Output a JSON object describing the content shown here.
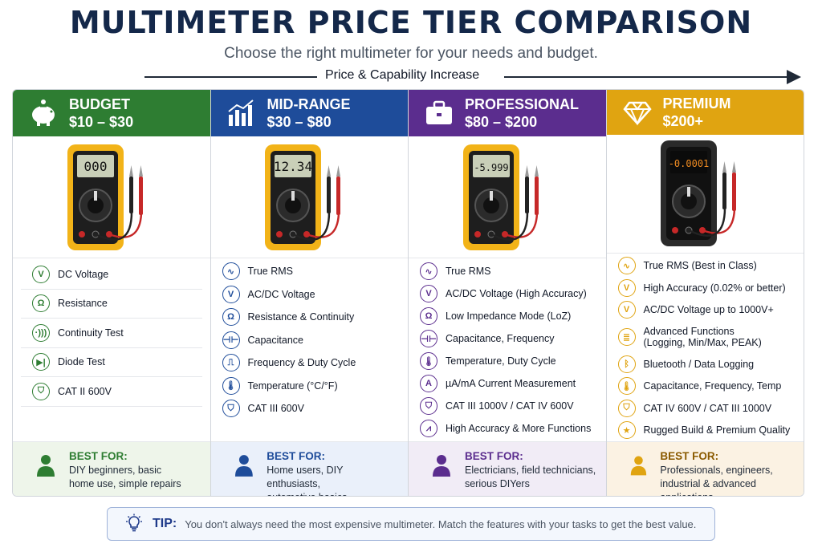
{
  "header": {
    "title": "MULTIMETER PRICE TIER COMPARISON",
    "subtitle": "Choose the right multimeter for your needs and budget.",
    "arrow_label": "Price & Capability Increase"
  },
  "tiers": [
    {
      "name": "BUDGET",
      "range": "$10 – $30",
      "color": "#2e7d32",
      "tint": "#eef5ea",
      "icon": "piggy-bank-icon",
      "display": "000",
      "features": [
        {
          "icon": "voltage-icon",
          "label": "DC Voltage"
        },
        {
          "icon": "resistance-icon",
          "label": "Resistance"
        },
        {
          "icon": "continuity-icon",
          "label": "Continuity Test"
        },
        {
          "icon": "diode-icon",
          "label": "Diode Test"
        },
        {
          "icon": "shield-icon",
          "label": "CAT II 600V"
        }
      ],
      "best_for_label": "BEST FOR:",
      "best_for": [
        "DIY beginners, basic",
        "home use, simple repairs"
      ]
    },
    {
      "name": "MID-RANGE",
      "range": "$30 – $80",
      "color": "#1e4c9a",
      "tint": "#eaf0fa",
      "icon": "bar-chart-icon",
      "display": "12.34",
      "features": [
        {
          "icon": "wave-icon",
          "label": "True RMS"
        },
        {
          "icon": "voltage-icon",
          "label": "AC/DC Voltage"
        },
        {
          "icon": "resistance-icon",
          "label": "Resistance & Continuity"
        },
        {
          "icon": "capacitor-icon",
          "label": "Capacitance"
        },
        {
          "icon": "frequency-icon",
          "label": "Frequency & Duty Cycle"
        },
        {
          "icon": "thermometer-icon",
          "label": "Temperature (°C/°F)"
        },
        {
          "icon": "shield-icon",
          "label": "CAT III 600V"
        }
      ],
      "best_for_label": "BEST FOR:",
      "best_for": [
        "Home users, DIY enthusiasts,",
        "automotive basics"
      ]
    },
    {
      "name": "PROFESSIONAL",
      "range": "$80 – $200",
      "color": "#5b2d8e",
      "tint": "#f1ecf6",
      "icon": "briefcase-icon",
      "display": "-5.999",
      "features": [
        {
          "icon": "wave-icon",
          "label": "True RMS"
        },
        {
          "icon": "voltage-icon",
          "label": "AC/DC Voltage (High Accuracy)"
        },
        {
          "icon": "resistance-icon",
          "label": "Low Impedance Mode (LoZ)"
        },
        {
          "icon": "capacitor-icon",
          "label": "Capacitance, Frequency"
        },
        {
          "icon": "thermometer-icon",
          "label": "Temperature, Duty Cycle"
        },
        {
          "icon": "current-icon",
          "label": "µA/mA Current Measurement"
        },
        {
          "icon": "shield-icon",
          "label": "CAT III 1000V / CAT IV 600V"
        },
        {
          "icon": "waveform-icon",
          "label": "High Accuracy & More Functions"
        }
      ],
      "best_for_label": "BEST FOR:",
      "best_for": [
        "Electricians, field technicians,",
        "serious DIYers"
      ]
    },
    {
      "name": "PREMIUM",
      "range": "$200+",
      "color": "#e0a411",
      "tint": "#fbf2e3",
      "icon": "diamond-icon",
      "display": "-0.0001",
      "features": [
        {
          "icon": "wave-icon",
          "label": "True RMS (Best in Class)"
        },
        {
          "icon": "voltage-icon",
          "label": "High Accuracy (0.02% or better)"
        },
        {
          "icon": "voltage-icon",
          "label": "AC/DC Voltage up to 1000V+"
        },
        {
          "icon": "functions-icon",
          "label": "Advanced Functions",
          "label2": "(Logging, Min/Max, PEAK)"
        },
        {
          "icon": "bluetooth-icon",
          "label": "Bluetooth / Data Logging"
        },
        {
          "icon": "thermometer-icon",
          "label": "Capacitance, Frequency, Temp"
        },
        {
          "icon": "shield-icon",
          "label": "CAT IV 600V / CAT III 1000V"
        },
        {
          "icon": "quality-icon",
          "label": "Rugged Build & Premium Quality"
        }
      ],
      "best_for_label": "BEST FOR:",
      "best_for": [
        "Professionals, engineers,",
        "industrial & advanced applications"
      ]
    }
  ],
  "tip": {
    "label": "TIP:",
    "text": "You don't always need the most expensive multimeter. Match the features with your tasks to get the best value."
  }
}
